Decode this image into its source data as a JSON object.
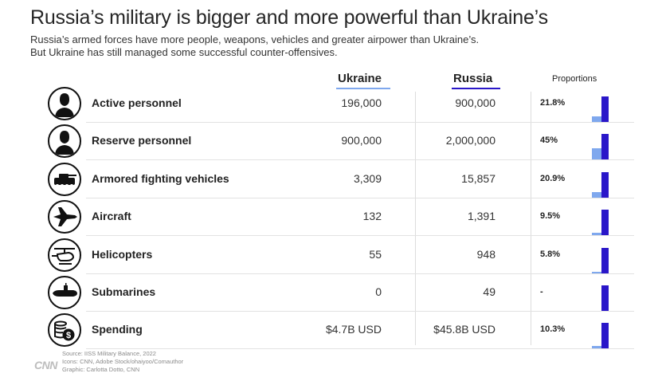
{
  "title": "Russia’s military is bigger and more powerful than Ukraine’s",
  "subtitle_line1": "Russia’s armed forces have more people, weapons, vehicles and greater airpower than Ukraine’s.",
  "subtitle_line2": "But Ukraine has still managed some successful counter-offensives.",
  "columns": {
    "ukraine": "Ukraine",
    "russia": "Russia",
    "proportions": "Proportions"
  },
  "colors": {
    "ukraine": "#7fa8ee",
    "russia": "#2a17c9"
  },
  "chart_data": {
    "type": "table",
    "title": "Russia’s military is bigger and more powerful than Ukraine’s",
    "columns": [
      "Ukraine",
      "Russia",
      "Proportions"
    ],
    "rows": [
      {
        "icon": "soldier-icon",
        "label": "Active personnel",
        "ukraine": "196,000",
        "russia": "900,000",
        "ukraine_value": 196000,
        "russia_value": 900000,
        "proportion": "21.8%",
        "ratio": 0.218
      },
      {
        "icon": "soldier-icon",
        "label": "Reserve personnel",
        "ukraine": "900,000",
        "russia": "2,000,000",
        "ukraine_value": 900000,
        "russia_value": 2000000,
        "proportion": "45%",
        "ratio": 0.45
      },
      {
        "icon": "tank-icon",
        "label": "Armored fighting vehicles",
        "ukraine": "3,309",
        "russia": "15,857",
        "ukraine_value": 3309,
        "russia_value": 15857,
        "proportion": "20.9%",
        "ratio": 0.209
      },
      {
        "icon": "jet-icon",
        "label": "Aircraft",
        "ukraine": "132",
        "russia": "1,391",
        "ukraine_value": 132,
        "russia_value": 1391,
        "proportion": "9.5%",
        "ratio": 0.095
      },
      {
        "icon": "helicopter-icon",
        "label": "Helicopters",
        "ukraine": "55",
        "russia": "948",
        "ukraine_value": 55,
        "russia_value": 948,
        "proportion": "5.8%",
        "ratio": 0.058
      },
      {
        "icon": "submarine-icon",
        "label": "Submarines",
        "ukraine": "0",
        "russia": "49",
        "ukraine_value": 0,
        "russia_value": 49,
        "proportion": "-",
        "ratio": 0
      },
      {
        "icon": "money-icon",
        "label": "Spending",
        "ukraine": "$4.7B USD",
        "russia": "$45.8B USD",
        "ukraine_value": 4.7,
        "russia_value": 45.8,
        "proportion": "10.3%",
        "ratio": 0.103
      }
    ]
  },
  "footer": {
    "logo": "CNN",
    "source": "Source:  IISS Military Balance, 2022",
    "icons": "Icons: CNN, Adobe Stock/ohaiyoo/Comauthor",
    "graphic": "Graphic: Carlotta Dotto, CNN"
  }
}
